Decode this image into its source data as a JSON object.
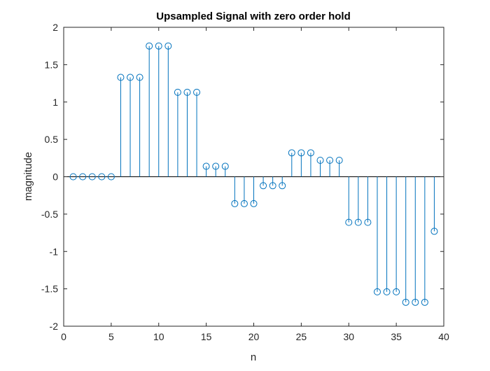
{
  "chart_data": {
    "type": "stem",
    "title": "Upsampled Signal with zero order hold",
    "xlabel": "n",
    "ylabel": "magnitude",
    "xlim": [
      0,
      40
    ],
    "ylim": [
      -2,
      2
    ],
    "xticks": [
      0,
      5,
      10,
      15,
      20,
      25,
      30,
      35,
      40
    ],
    "yticks": [
      -2,
      -1.5,
      -1,
      -0.5,
      0,
      0.5,
      1,
      1.5,
      2
    ],
    "grid": false,
    "legend": "none",
    "colors": {
      "series": "#0072BD",
      "axes": "#262626",
      "zero_line": "#000000"
    },
    "series": [
      {
        "marker": "circle",
        "x": [
          1,
          2,
          3,
          4,
          5,
          6,
          7,
          8,
          9,
          10,
          11,
          12,
          13,
          14,
          15,
          16,
          17,
          18,
          19,
          20,
          21,
          22,
          23,
          24,
          25,
          26,
          27,
          28,
          29,
          30,
          31,
          32,
          33,
          34,
          35,
          36,
          37,
          38,
          39
        ],
        "y": [
          0,
          0,
          0,
          0,
          0,
          1.33,
          1.33,
          1.33,
          1.75,
          1.75,
          1.75,
          1.13,
          1.13,
          1.13,
          0.14,
          0.14,
          0.14,
          -0.36,
          -0.36,
          -0.36,
          -0.12,
          -0.12,
          -0.12,
          0.32,
          0.32,
          0.32,
          0.22,
          0.22,
          0.22,
          -0.61,
          -0.61,
          -0.61,
          -1.54,
          -1.54,
          -1.54,
          -1.68,
          -1.68,
          -1.68,
          -0.73
        ]
      }
    ]
  }
}
